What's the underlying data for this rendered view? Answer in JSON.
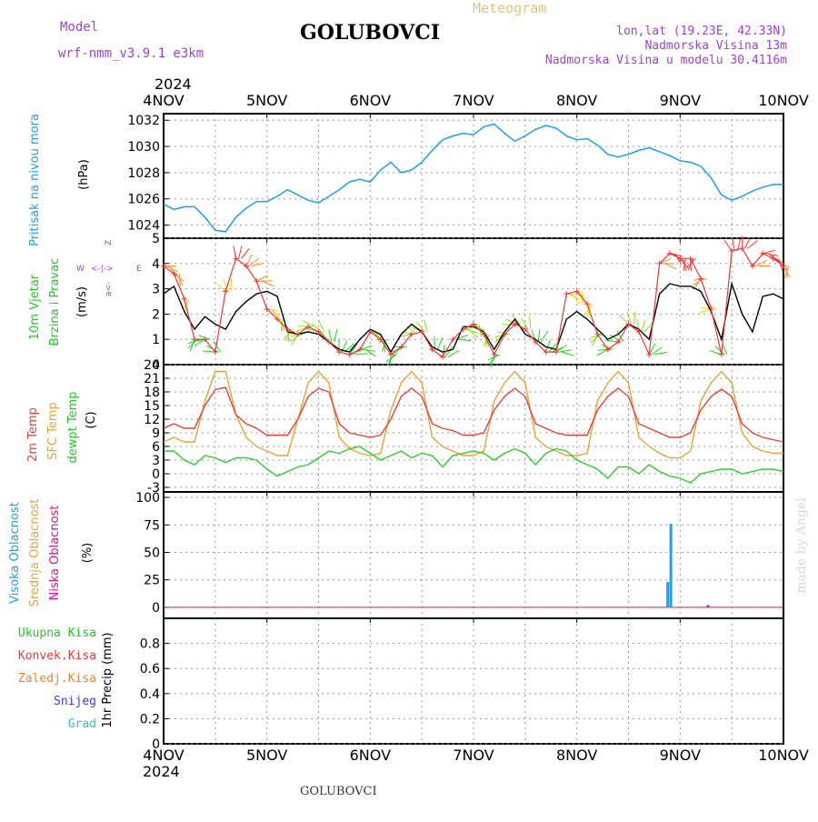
{
  "header": {
    "model_label": "Model",
    "model_name": "wrf-nmm_v3.9.1  e3km",
    "station": "GOLUBOVCI",
    "product": "Meteogram",
    "coords": "lon,lat (19.23E, 42.33N)",
    "altitude": "Nadmorska Visina 13m",
    "model_altitude": "Nadmorska Visina u modelu 30.4116m",
    "year_top": "2024",
    "year_bottom": "2024",
    "footer_station": "GOLUBOVCI",
    "watermark": "made by Angel"
  },
  "colors": {
    "pressure": "#1ea0e6",
    "wind_label": "#1ecc1e",
    "wind_speed_black": "#000000",
    "wind_speed_red": "#e83a3a",
    "temp_2m": "#e8413c",
    "temp_sfc": "#e0a63c",
    "temp_dew": "#2ecc2e",
    "cloud_high": "#1ea0e6",
    "cloud_mid": "#e0a63c",
    "cloud_low": "#e0109a",
    "precip_total": "#1ecc1e",
    "precip_conv": "#e83a3a",
    "precip_frozen": "#f0852a",
    "precip_snow": "#3b3bdd",
    "precip_grad": "#2ec7b3",
    "purple_text": "#a040d0"
  },
  "chart_data": [
    {
      "type": "line",
      "panel": "pressure",
      "ylabel_main": "Pritisak na nivou mora",
      "ylabel_unit": "(hPa)",
      "x_tick_labels": [
        "4NOV",
        "5NOV",
        "6NOV",
        "7NOV",
        "8NOV",
        "9NOV",
        "10NOV"
      ],
      "ylim": [
        1023,
        1032.5
      ],
      "yticks": [
        1024,
        1026,
        1028,
        1030,
        1032
      ],
      "grid": true,
      "x_unit": "days since 4NOV 00",
      "series": [
        {
          "values_x": [
            0,
            0.1,
            0.2,
            0.3,
            0.4,
            0.5,
            0.6,
            0.7,
            0.8,
            0.9,
            1.0,
            1.1,
            1.2,
            1.3,
            1.4,
            1.5,
            1.6,
            1.7,
            1.8,
            1.9,
            2.0,
            2.1,
            2.2,
            2.3,
            2.4,
            2.5,
            2.6,
            2.7,
            2.8,
            2.9,
            3.0,
            3.1,
            3.2,
            3.3,
            3.4,
            3.5,
            3.6,
            3.7,
            3.8,
            3.9,
            4.0,
            4.1,
            4.2,
            4.3,
            4.4,
            4.5,
            4.6,
            4.7,
            4.8,
            4.9,
            5.0,
            5.1,
            5.2,
            5.3,
            5.4,
            5.5,
            5.6,
            5.7,
            5.8,
            5.9,
            6.0
          ],
          "values_y": [
            1025.6,
            1025.2,
            1025.4,
            1025.4,
            1024.6,
            1023.6,
            1023.5,
            1024.6,
            1025.3,
            1025.8,
            1025.8,
            1026.2,
            1026.7,
            1026.3,
            1025.9,
            1025.7,
            1026.2,
            1026.7,
            1027.3,
            1027.5,
            1027.3,
            1028.2,
            1028.8,
            1028.0,
            1028.2,
            1028.8,
            1029.7,
            1030.5,
            1030.8,
            1031.0,
            1030.9,
            1031.5,
            1031.7,
            1031.0,
            1030.4,
            1030.8,
            1031.3,
            1031.6,
            1031.4,
            1030.8,
            1030.5,
            1030.6,
            1030.1,
            1029.4,
            1029.2,
            1029.4,
            1029.7,
            1029.9,
            1029.6,
            1029.3,
            1028.9,
            1028.8,
            1028.5,
            1027.6,
            1026.3,
            1025.9,
            1026.2,
            1026.6,
            1026.9,
            1027.1,
            1027.1
          ]
        }
      ]
    },
    {
      "type": "line",
      "panel": "wind",
      "ylabel_main_1": "10m Vjetar",
      "ylabel_main_2": "Brzina i Pravac",
      "ylabel_unit": "(m/s)",
      "ylim": [
        0,
        5
      ],
      "yticks": [
        0,
        1,
        2,
        3,
        4,
        5
      ],
      "grid": true,
      "legend_compass": [
        "Z",
        "->",
        "<-",
        "W",
        "E",
        "a<-"
      ],
      "series": [
        {
          "name": "",
          "values_x": [
            0,
            0.1,
            0.2,
            0.3,
            0.4,
            0.5,
            0.6,
            0.7,
            0.8,
            0.9,
            1.0,
            1.1,
            1.2,
            1.3,
            1.4,
            1.5,
            1.6,
            1.7,
            1.8,
            1.9,
            2.0,
            2.1,
            2.2,
            2.3,
            2.4,
            2.5,
            2.6,
            2.7,
            2.8,
            2.9,
            3.0,
            3.1,
            3.2,
            3.3,
            3.4,
            3.5,
            3.6,
            3.7,
            3.8,
            3.9,
            4.0,
            4.1,
            4.2,
            4.3,
            4.4,
            4.5,
            4.6,
            4.7,
            4.8,
            4.9,
            5.0,
            5.1,
            5.2,
            5.3,
            5.4,
            5.5,
            5.6,
            5.7,
            5.8,
            5.9,
            6.0
          ],
          "values_y": [
            2.8,
            3.1,
            2.1,
            1.4,
            1.9,
            1.6,
            1.4,
            2.1,
            2.5,
            2.8,
            2.9,
            2.7,
            1.3,
            1.2,
            1.3,
            1.2,
            0.9,
            0.6,
            0.5,
            1.0,
            1.4,
            1.2,
            0.5,
            1.2,
            1.6,
            1.3,
            0.7,
            0.5,
            0.6,
            1.5,
            1.5,
            1.3,
            0.6,
            1.3,
            1.8,
            1.2,
            1.0,
            0.7,
            0.6,
            1.8,
            2.1,
            1.8,
            1.4,
            1.0,
            1.2,
            1.6,
            1.4,
            1.0,
            2.8,
            3.2,
            3.1,
            3.1,
            2.9,
            2.1,
            1.0,
            3.2,
            2.0,
            1.3,
            2.7,
            2.8,
            2.6
          ]
        },
        {
          "name": "",
          "values_x": [
            0,
            0.1,
            0.2,
            0.3,
            0.4,
            0.5,
            0.6,
            0.7,
            0.8,
            0.9,
            1.0,
            1.1,
            1.2,
            1.3,
            1.4,
            1.5,
            1.6,
            1.7,
            1.8,
            1.9,
            2.0,
            2.1,
            2.2,
            2.3,
            2.4,
            2.5,
            2.6,
            2.7,
            2.8,
            2.9,
            3.0,
            3.1,
            3.2,
            3.3,
            3.4,
            3.5,
            3.6,
            3.7,
            3.8,
            3.9,
            4.0,
            4.1,
            4.2,
            4.3,
            4.4,
            4.5,
            4.6,
            4.7,
            4.8,
            4.9,
            5.0,
            5.1,
            5.2,
            5.3,
            5.4,
            5.5,
            5.6,
            5.7,
            5.8,
            5.9,
            6.0
          ],
          "values_y": [
            3.9,
            3.6,
            2.6,
            1.0,
            1.0,
            0.5,
            2.9,
            4.2,
            3.9,
            3.3,
            2.2,
            1.8,
            1.4,
            1.2,
            1.5,
            1.3,
            0.9,
            0.5,
            0.4,
            0.6,
            1.3,
            1.0,
            0.4,
            0.7,
            1.2,
            1.3,
            0.6,
            0.3,
            1.0,
            1.4,
            1.6,
            1.2,
            0.4,
            1.2,
            1.6,
            1.4,
            0.9,
            0.5,
            0.5,
            2.8,
            2.9,
            2.4,
            1.2,
            0.6,
            0.9,
            1.6,
            1.3,
            0.4,
            4.0,
            4.4,
            4.2,
            4.2,
            3.4,
            2.2,
            0.4,
            4.5,
            4.6,
            3.9,
            4.4,
            4.2,
            3.9
          ]
        }
      ]
    },
    {
      "type": "line",
      "panel": "temperature",
      "ylabel_main_1": "2m Temp",
      "ylabel_main_2": "SFC Temp",
      "ylabel_main_3": "dewpt Temp",
      "ylabel_unit": "(C)",
      "ylim": [
        -4,
        24
      ],
      "yticks": [
        -3,
        0,
        3,
        6,
        9,
        12,
        15,
        18,
        21,
        24
      ],
      "grid": true,
      "series": [
        {
          "name": "2m Temp",
          "values_x": [
            0,
            0.1,
            0.2,
            0.3,
            0.4,
            0.5,
            0.6,
            0.7,
            0.8,
            0.9,
            1.0,
            1.1,
            1.2,
            1.3,
            1.4,
            1.5,
            1.6,
            1.7,
            1.8,
            1.9,
            2.0,
            2.1,
            2.2,
            2.3,
            2.4,
            2.5,
            2.6,
            2.7,
            2.8,
            2.9,
            3.0,
            3.1,
            3.2,
            3.3,
            3.4,
            3.5,
            3.6,
            3.7,
            3.8,
            3.9,
            4.0,
            4.1,
            4.2,
            4.3,
            4.4,
            4.5,
            4.6,
            4.7,
            4.8,
            4.9,
            5.0,
            5.1,
            5.2,
            5.3,
            5.4,
            5.5,
            5.6,
            5.7,
            5.8,
            5.9,
            6.0
          ],
          "values_y": [
            10,
            11,
            10,
            10,
            15,
            18.5,
            19,
            13,
            11,
            10,
            8.5,
            8.5,
            8.5,
            12,
            17,
            18.8,
            18,
            11,
            9,
            8.5,
            8,
            8.5,
            12,
            17,
            18.8,
            17,
            11,
            10,
            9.5,
            8.5,
            8.5,
            9,
            14,
            17,
            18.8,
            17,
            11,
            10,
            9,
            8.5,
            8.5,
            8.5,
            14,
            17,
            18.8,
            17,
            11,
            10,
            9,
            8,
            8,
            9,
            14,
            17,
            18.6,
            17,
            11,
            9,
            8,
            7.5,
            7
          ]
        },
        {
          "name": "SFC Temp",
          "values_x": [
            0,
            0.1,
            0.2,
            0.3,
            0.4,
            0.5,
            0.6,
            0.7,
            0.8,
            0.9,
            1.0,
            1.1,
            1.2,
            1.3,
            1.4,
            1.5,
            1.6,
            1.7,
            1.8,
            1.9,
            2.0,
            2.1,
            2.2,
            2.3,
            2.4,
            2.5,
            2.6,
            2.7,
            2.8,
            2.9,
            3.0,
            3.1,
            3.2,
            3.3,
            3.4,
            3.5,
            3.6,
            3.7,
            3.8,
            3.9,
            4.0,
            4.1,
            4.2,
            4.3,
            4.4,
            4.5,
            4.6,
            4.7,
            4.8,
            4.9,
            5.0,
            5.1,
            5.2,
            5.3,
            5.4,
            5.5,
            5.6,
            5.7,
            5.8,
            5.9,
            6.0
          ],
          "values_y": [
            7,
            8,
            7,
            7,
            16,
            22.5,
            22.5,
            13,
            8,
            6,
            5,
            4,
            4,
            12,
            20,
            22.5,
            20,
            8,
            5.5,
            4.5,
            4,
            4.5,
            14,
            20,
            22.5,
            20,
            8,
            6,
            5,
            4,
            4,
            5,
            16,
            20,
            22.5,
            20,
            8,
            6,
            5,
            4,
            4,
            4.5,
            16,
            20,
            22.5,
            20,
            8,
            6,
            4.5,
            3.5,
            3.5,
            5,
            16,
            20,
            22.5,
            20,
            9,
            6,
            5,
            4.5,
            4.5
          ]
        },
        {
          "name": "dewpt Temp",
          "values_x": [
            0,
            0.1,
            0.2,
            0.3,
            0.4,
            0.5,
            0.6,
            0.7,
            0.8,
            0.9,
            1.0,
            1.1,
            1.2,
            1.3,
            1.4,
            1.5,
            1.6,
            1.7,
            1.8,
            1.9,
            2.0,
            2.1,
            2.2,
            2.3,
            2.4,
            2.5,
            2.6,
            2.7,
            2.8,
            2.9,
            3.0,
            3.1,
            3.2,
            3.3,
            3.4,
            3.5,
            3.6,
            3.7,
            3.8,
            3.9,
            4.0,
            4.1,
            4.2,
            4.3,
            4.4,
            4.5,
            4.6,
            4.7,
            4.8,
            4.9,
            5.0,
            5.1,
            5.2,
            5.3,
            5.4,
            5.5,
            5.6,
            5.7,
            5.8,
            5.9,
            6.0
          ],
          "values_y": [
            5,
            5,
            3,
            2,
            4,
            3.5,
            2.5,
            3.5,
            3.5,
            3,
            1,
            -0.5,
            0.5,
            1.5,
            2,
            3.5,
            5,
            4.5,
            5.5,
            6,
            4.5,
            3,
            4,
            5,
            3.5,
            4.5,
            4,
            1.5,
            4,
            4.5,
            5,
            4.5,
            3,
            4.5,
            5.5,
            4.5,
            2,
            4.5,
            5.5,
            5,
            3,
            2,
            1,
            -1,
            1.5,
            1.5,
            0,
            2,
            0.5,
            -0.5,
            -1,
            -2,
            0,
            0.5,
            1,
            1,
            0,
            0.5,
            1,
            1,
            0.5
          ]
        }
      ]
    },
    {
      "type": "bar",
      "panel": "cloud",
      "ylabel_main_1": "Visoka Oblacnost",
      "ylabel_main_2": "Srednja Oblacnost",
      "ylabel_main_3": "Niska Oblacnost",
      "ylabel_unit": "(%)",
      "ylim": [
        -10,
        105
      ],
      "yticks": [
        0,
        25,
        50,
        75,
        100
      ],
      "grid": true,
      "series": [
        {
          "name": "Visoka Oblacnost",
          "values_x": [
            4.88,
            4.91
          ],
          "values_y": [
            23,
            76
          ]
        },
        {
          "name": "Niska Oblacnost",
          "values_x": [
            5.27
          ],
          "values_y": [
            2
          ]
        }
      ]
    },
    {
      "type": "line",
      "panel": "precip",
      "ylabel_unit": "1hr Precip (mm)",
      "legend": [
        "Ukupna Kisa",
        "Konvek.Kisa",
        "Zaledj.Kisa",
        "Snijeg",
        "Grad"
      ],
      "ylim": [
        0,
        1
      ],
      "yticks": [
        0,
        0.2,
        0.4,
        0.6,
        0.8
      ],
      "grid": true,
      "series": []
    }
  ]
}
